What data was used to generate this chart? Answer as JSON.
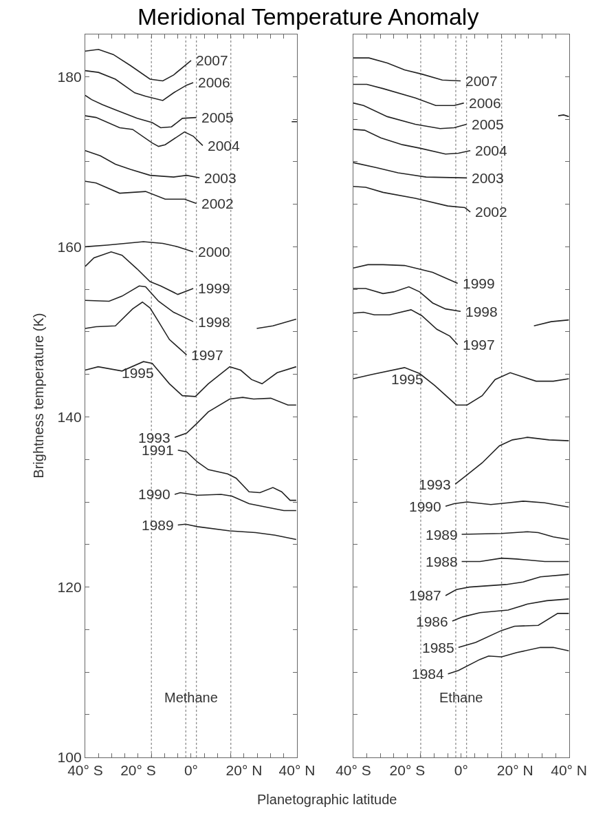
{
  "chart_data": [
    {
      "type": "line",
      "title": "Meridional Temperature Anomaly",
      "xlabel": "Planetographic latitude",
      "ylabel": "Brightness temperature (K)",
      "annotations": [
        "Methane"
      ],
      "xlim": [
        -40,
        40
      ],
      "xticks": [
        {
          "value": -40,
          "label": "40° S"
        },
        {
          "value": -35,
          "label": null
        },
        {
          "value": -30,
          "label": null
        },
        {
          "value": -25,
          "label": null
        },
        {
          "value": -20,
          "label": "20° S"
        },
        {
          "value": -15,
          "label": null
        },
        {
          "value": -10,
          "label": null
        },
        {
          "value": -5,
          "label": null
        },
        {
          "value": 0,
          "label": "0°"
        },
        {
          "value": 5,
          "label": null
        },
        {
          "value": 10,
          "label": null
        },
        {
          "value": 15,
          "label": null
        },
        {
          "value": 20,
          "label": "20° N"
        },
        {
          "value": 25,
          "label": null
        },
        {
          "value": 30,
          "label": null
        },
        {
          "value": 35,
          "label": null
        },
        {
          "value": 40,
          "label": "40° N"
        }
      ],
      "ylim": [
        100,
        185
      ],
      "yticks": [
        100,
        {
          "value": 105,
          "label": null
        },
        {
          "value": 110,
          "label": null
        },
        {
          "value": 115,
          "label": null
        },
        120,
        {
          "value": 125,
          "label": null
        },
        {
          "value": 130,
          "label": null
        },
        {
          "value": 135,
          "label": null
        },
        140,
        {
          "value": 145,
          "label": null
        },
        {
          "value": 150,
          "label": null
        },
        {
          "value": 155,
          "label": null
        },
        160,
        {
          "value": 165,
          "label": null
        },
        {
          "value": 170,
          "label": null
        },
        {
          "value": 175,
          "label": null
        },
        180
      ],
      "grid": false,
      "legend": false,
      "marker": "none",
      "line_style": "solid",
      "ref_lines": [
        {
          "axis": "x",
          "value": -15,
          "color": "#888888",
          "line_style": "dotted"
        },
        {
          "axis": "x",
          "value": -2,
          "color": "#888888",
          "line_style": "dotted"
        },
        {
          "axis": "x",
          "value": 2,
          "color": "#888888",
          "line_style": "dotted"
        },
        {
          "axis": "x",
          "value": 15,
          "color": "#888888",
          "line_style": "dotted"
        }
      ],
      "series": [
        {
          "name": "2007",
          "color": "#222222",
          "x": [
            -40,
            -35,
            -29.4,
            -22.9,
            -15.5,
            -10.7,
            -6.6,
            0
          ],
          "values": [
            183.0,
            183.2,
            182.6,
            181.3,
            179.7,
            179.5,
            180.2,
            181.9
          ]
        },
        {
          "name": "2006",
          "color": "#222222",
          "x": [
            -40,
            -35,
            -28.6,
            -21.3,
            -17.2,
            -10.7,
            -6.6,
            -1.7,
            0.8
          ],
          "values": [
            180.7,
            180.5,
            179.7,
            178.1,
            177.7,
            177.2,
            178.1,
            179.0,
            179.3
          ]
        },
        {
          "name": "2005",
          "color": "#222222",
          "x": [
            -40,
            -37.6,
            -33.5,
            -28.6,
            -20.4,
            -14.7,
            -11.5,
            -7.4,
            -3.3,
            2.0
          ],
          "values": [
            177.8,
            177.3,
            176.7,
            176.1,
            175.1,
            174.6,
            174.0,
            174.1,
            175.1,
            175.2
          ]
        },
        {
          "name": "2004",
          "color": "#222222",
          "x": [
            -40,
            -35.9,
            -27,
            -22.1,
            -14.7,
            -12.3,
            -9.8,
            -2.5,
            0.8,
            4.4
          ],
          "values": [
            175.4,
            175.2,
            174.0,
            173.8,
            172.2,
            171.8,
            172.0,
            173.5,
            173.0,
            171.9
          ]
        },
        {
          "name": "2003",
          "color": "#222222",
          "x": [
            -40,
            -34.3,
            -28.6,
            -22.9,
            -15.5,
            -6.6,
            -1.7,
            3.2
          ],
          "values": [
            171.3,
            170.7,
            169.7,
            169.1,
            168.4,
            168.2,
            168.4,
            168.1
          ]
        },
        {
          "name": "2002",
          "color": "#222222",
          "x": [
            -40,
            -35.9,
            -27,
            -17.2,
            -9.8,
            -2.5,
            2.0
          ],
          "values": [
            167.7,
            167.5,
            166.3,
            166.5,
            165.6,
            165.6,
            165.1
          ]
        },
        {
          "name": "2000",
          "color": "#222222",
          "x": [
            -40,
            -31.8,
            -18,
            -10.7,
            -5,
            0.8
          ],
          "values": [
            160.0,
            160.2,
            160.6,
            160.4,
            160.0,
            159.4
          ]
        },
        {
          "name": "1999",
          "color": "#222222",
          "x": [
            -40,
            -36.7,
            -30.2,
            -26.1,
            -20.4,
            -15.5,
            -11.5,
            -5,
            0.8
          ],
          "values": [
            157.7,
            158.7,
            159.4,
            159.0,
            157.4,
            155.9,
            155.4,
            154.4,
            155.1
          ]
        },
        {
          "name": "1998",
          "color": "#222222",
          "x": [
            -40,
            -31,
            -26.1,
            -19.6,
            -17.2,
            -12.3,
            -6.6,
            0.8,
            12,
            24.8,
            30.9,
            39.7
          ],
          "values": [
            153.7,
            153.6,
            154.2,
            155.4,
            155.3,
            153.6,
            152.3,
            151.2,
            null,
            150.4,
            150.7,
            151.5
          ]
        },
        {
          "name": "1997",
          "color": "#222222",
          "x": [
            -40,
            -35.9,
            -28.6,
            -22.1,
            -18.4,
            -15.5,
            -12.3,
            -8.2,
            -1.7
          ],
          "values": [
            150.4,
            150.6,
            150.7,
            152.7,
            153.5,
            152.8,
            151.2,
            149.1,
            147.3
          ]
        },
        {
          "name": "1995",
          "color": "#222222",
          "x": [
            -40,
            -35.1,
            -26.1,
            -18,
            -14.7,
            -8.2,
            -3.3,
            1.6,
            6.5,
            14.6,
            18.7,
            22.8,
            26.8,
            32.5,
            39.7
          ],
          "values": [
            145.5,
            145.9,
            145.4,
            146.5,
            146.3,
            143.9,
            142.5,
            142.4,
            143.9,
            145.9,
            145.5,
            144.4,
            143.9,
            145.2,
            145.9
          ]
        },
        {
          "name": "1993",
          "color": "#222222",
          "x": [
            -6.2,
            -1.7,
            2.4,
            6.5,
            14.6,
            19.5,
            23.6,
            30.1,
            36.6,
            39.7
          ],
          "values": [
            137.6,
            138.1,
            139.3,
            140.6,
            142.1,
            142.3,
            142.1,
            142.2,
            141.4,
            141.4
          ]
        },
        {
          "name": "1991",
          "color": "#222222",
          "x": [
            -5,
            -1.7,
            2.4,
            6.5,
            13.8,
            17,
            21.9,
            26,
            30.9,
            34.2,
            37.4,
            39.7
          ],
          "values": [
            136.1,
            135.9,
            134.7,
            133.8,
            133.3,
            132.8,
            131.2,
            131.1,
            131.7,
            131.2,
            130.2,
            130.2
          ]
        },
        {
          "name": "1990",
          "color": "#222222",
          "x": [
            -6.2,
            -4.1,
            2.4,
            11.3,
            15.4,
            21.9,
            28.4,
            35,
            39.7
          ],
          "values": [
            130.9,
            131.1,
            130.8,
            130.9,
            130.7,
            129.8,
            129.4,
            129.0,
            129.0
          ]
        },
        {
          "name": "1989",
          "color": "#222222",
          "x": [
            -5,
            -2.1,
            2.4,
            14.6,
            24.4,
            31.7,
            39.7
          ],
          "values": [
            127.3,
            127.4,
            127.1,
            126.6,
            126.4,
            126.1,
            125.6
          ]
        },
        {
          "color": "#222222",
          "x": [
            38,
            40
          ],
          "values": [
            174.7,
            174.7
          ]
        }
      ]
    },
    {
      "type": "line",
      "annotations": [
        "Ethane"
      ],
      "xlim": [
        -40,
        40
      ],
      "tick_labels": "x",
      "xticks": [
        {
          "value": -40,
          "label": "40° S"
        },
        {
          "value": -35,
          "label": null
        },
        {
          "value": -30,
          "label": null
        },
        {
          "value": -25,
          "label": null
        },
        {
          "value": -20,
          "label": "20° S"
        },
        {
          "value": -15,
          "label": null
        },
        {
          "value": -10,
          "label": null
        },
        {
          "value": -5,
          "label": null
        },
        {
          "value": 0,
          "label": "0°"
        },
        {
          "value": 5,
          "label": null
        },
        {
          "value": 10,
          "label": null
        },
        {
          "value": 15,
          "label": null
        },
        {
          "value": 20,
          "label": "20° N"
        },
        {
          "value": 25,
          "label": null
        },
        {
          "value": 30,
          "label": null
        },
        {
          "value": 35,
          "label": null
        },
        {
          "value": 40,
          "label": "40° N"
        }
      ],
      "ylim": [
        100,
        185
      ],
      "yticks": [
        100,
        {
          "value": 105,
          "label": null
        },
        {
          "value": 110,
          "label": null
        },
        {
          "value": 115,
          "label": null
        },
        120,
        {
          "value": 125,
          "label": null
        },
        {
          "value": 130,
          "label": null
        },
        {
          "value": 135,
          "label": null
        },
        140,
        {
          "value": 145,
          "label": null
        },
        {
          "value": 150,
          "label": null
        },
        {
          "value": 155,
          "label": null
        },
        160,
        {
          "value": 165,
          "label": null
        },
        {
          "value": 170,
          "label": null
        },
        {
          "value": 175,
          "label": null
        },
        180
      ],
      "grid": false,
      "legend": false,
      "marker": "none",
      "line_style": "solid",
      "ref_lines": [
        {
          "axis": "x",
          "value": -15,
          "color": "#888888",
          "line_style": "dotted"
        },
        {
          "axis": "x",
          "value": -2,
          "color": "#888888",
          "line_style": "dotted"
        },
        {
          "axis": "x",
          "value": 2,
          "color": "#888888",
          "line_style": "dotted"
        },
        {
          "axis": "x",
          "value": 15,
          "color": "#888888",
          "line_style": "dotted"
        }
      ],
      "series": [
        {
          "name": "2007",
          "color": "#222222",
          "x": [
            -40,
            -34.2,
            -27.4,
            -21,
            -14.6,
            -7,
            -0.2
          ],
          "values": [
            182.2,
            182.2,
            181.6,
            180.8,
            180.3,
            179.6,
            179.5
          ]
        },
        {
          "name": "2006",
          "color": "#222222",
          "x": [
            -40,
            -35,
            -29,
            -17,
            -9.4,
            -2.6,
            1
          ],
          "values": [
            179.1,
            179.1,
            178.6,
            177.5,
            176.6,
            176.6,
            176.9
          ]
        },
        {
          "name": "2005",
          "color": "#222222",
          "x": [
            -40,
            -36.2,
            -27.4,
            -17,
            -7.8,
            -2.6,
            2
          ],
          "values": [
            176.9,
            176.6,
            175.3,
            174.4,
            173.9,
            174.0,
            174.4
          ]
        },
        {
          "name": "2004",
          "color": "#222222",
          "x": [
            -40,
            -35.8,
            -29.8,
            -21.8,
            -15.4,
            -5.8,
            -1,
            3.4
          ],
          "values": [
            173.8,
            173.7,
            172.8,
            172.0,
            171.6,
            170.9,
            171.0,
            171.3
          ]
        },
        {
          "name": "2003",
          "color": "#222222",
          "x": [
            -40,
            -31.4,
            -23.4,
            -13,
            2
          ],
          "values": [
            169.9,
            169.3,
            168.7,
            168.2,
            168.1
          ]
        },
        {
          "name": "2002",
          "color": "#222222",
          "x": [
            -40,
            -35.4,
            -29,
            -17,
            -5,
            1.4,
            3.4
          ],
          "values": [
            167.1,
            167.0,
            166.4,
            165.7,
            164.8,
            164.6,
            164.1
          ]
        },
        {
          "name": "1999",
          "color": "#222222",
          "x": [
            -40,
            -34.6,
            -29,
            -21,
            -10.6,
            -1.3
          ],
          "values": [
            157.5,
            157.9,
            157.9,
            157.8,
            157.0,
            155.7
          ]
        },
        {
          "name": "1998",
          "color": "#222222",
          "x": [
            -40,
            -35.4,
            -29,
            -25,
            -19.4,
            -15.4,
            -10.6,
            -5.8,
            -0.2,
            14,
            27,
            33.4,
            40
          ],
          "values": [
            155.1,
            155.1,
            154.5,
            154.7,
            155.3,
            154.7,
            153.4,
            152.7,
            152.4,
            null,
            150.7,
            151.2,
            151.4
          ]
        },
        {
          "name": "1997",
          "color": "#222222",
          "x": [
            -40,
            -36.2,
            -32.2,
            -26.6,
            -18.6,
            -14.6,
            -9,
            -4.2,
            -1.3
          ],
          "values": [
            152.2,
            152.3,
            152.0,
            152.0,
            152.6,
            151.9,
            150.3,
            149.5,
            148.5
          ]
        },
        {
          "name": "1995",
          "color": "#222222",
          "x": [
            -40,
            -33,
            -21,
            -15.4,
            -9.8,
            -1.8,
            2.2,
            7.8,
            12.6,
            18.2,
            23,
            27.8,
            34.2,
            40
          ],
          "values": [
            144.5,
            145.0,
            145.8,
            145.1,
            143.7,
            141.4,
            141.4,
            142.5,
            144.4,
            145.2,
            144.7,
            144.2,
            144.2,
            144.5
          ]
        },
        {
          "name": "1993",
          "color": "#222222",
          "x": [
            -2.2,
            2.2,
            7.8,
            14.2,
            19,
            24.6,
            32.6,
            40
          ],
          "values": [
            132.1,
            133.2,
            134.6,
            136.6,
            137.3,
            137.6,
            137.3,
            137.2
          ]
        },
        {
          "name": "1990",
          "color": "#222222",
          "x": [
            -5.8,
            -2.6,
            2.2,
            11,
            17.4,
            23,
            31,
            40
          ],
          "values": [
            129.5,
            129.8,
            130.0,
            129.7,
            129.9,
            130.1,
            129.9,
            129.4
          ]
        },
        {
          "name": "1989",
          "color": "#222222",
          "x": [
            0.2,
            15,
            24.6,
            28.6,
            34.2,
            40
          ],
          "values": [
            126.2,
            126.3,
            126.5,
            126.4,
            125.9,
            125.6
          ]
        },
        {
          "name": "1988",
          "color": "#222222",
          "x": [
            0.2,
            7,
            15,
            20.6,
            31,
            40
          ],
          "values": [
            123.0,
            123.0,
            123.4,
            123.3,
            123.0,
            123.0
          ]
        },
        {
          "name": "1987",
          "color": "#222222",
          "x": [
            -5.8,
            -1.8,
            3,
            16.6,
            23,
            29.4,
            40
          ],
          "values": [
            119.0,
            119.7,
            120.0,
            120.3,
            120.6,
            121.2,
            121.5
          ]
        },
        {
          "name": "1986",
          "color": "#222222",
          "x": [
            -3.3,
            0.6,
            7,
            17.4,
            24.6,
            31.8,
            40
          ],
          "values": [
            116.0,
            116.5,
            117.0,
            117.3,
            118.0,
            118.4,
            118.6
          ]
        },
        {
          "name": "1985",
          "color": "#222222",
          "x": [
            -1,
            5.4,
            15,
            19.8,
            28.6,
            35.8,
            40
          ],
          "values": [
            112.9,
            113.5,
            114.9,
            115.4,
            115.5,
            116.9,
            116.9
          ]
        },
        {
          "name": "1984",
          "color": "#222222",
          "x": [
            -4.9,
            -1,
            7,
            10.2,
            15,
            20.6,
            29.4,
            34.2,
            40
          ],
          "values": [
            109.8,
            110.2,
            111.5,
            111.9,
            111.8,
            112.3,
            112.9,
            112.9,
            112.5
          ]
        },
        {
          "color": "#222222",
          "x": [
            36,
            38,
            40
          ],
          "values": [
            175.4,
            175.5,
            175.3
          ]
        }
      ]
    }
  ]
}
